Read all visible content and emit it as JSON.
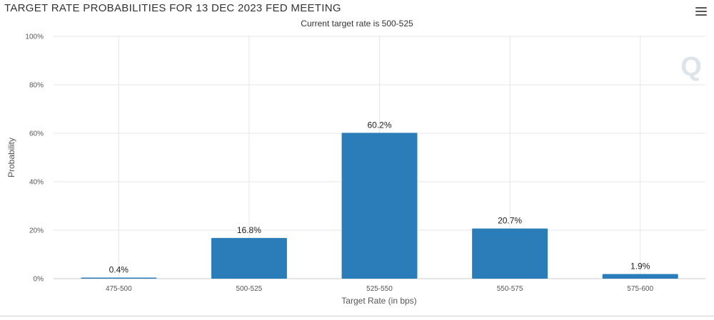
{
  "header": {
    "title": "TARGET RATE PROBABILITIES FOR 13 DEC 2023 FED MEETING",
    "menu_icon": "hamburger-menu-icon"
  },
  "chart_data": {
    "type": "bar",
    "title": "TARGET RATE PROBABILITIES FOR 13 DEC 2023 FED MEETING",
    "subtitle": "Current target rate is 500-525",
    "xlabel": "Target Rate (in bps)",
    "ylabel": "Probability",
    "categories": [
      "475-500",
      "500-525",
      "525-550",
      "550-575",
      "575-600"
    ],
    "values": [
      0.4,
      16.8,
      60.2,
      20.7,
      1.9
    ],
    "data_labels": [
      "0.4%",
      "16.8%",
      "60.2%",
      "20.7%",
      "1.9%"
    ],
    "ylim": [
      0,
      100
    ],
    "yticks": [
      0,
      20,
      40,
      60,
      80,
      100
    ],
    "ytick_labels": [
      "0%",
      "20%",
      "40%",
      "60%",
      "80%",
      "100%"
    ],
    "grid": true,
    "legend": "none",
    "bar_color": "#2a7db8",
    "grid_color": "#e6e6e6",
    "watermark": "Q"
  }
}
